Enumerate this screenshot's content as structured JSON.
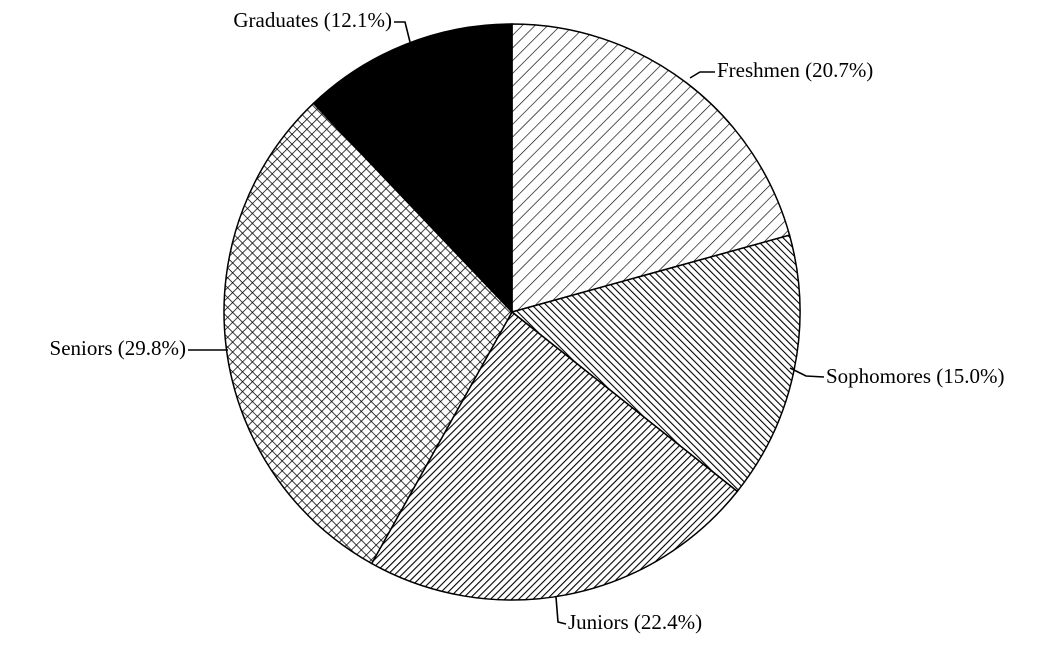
{
  "chart_data": {
    "type": "pie",
    "categories": [
      "Freshmen (20.7%)",
      "Sophomores (15.0%)",
      "Juniors (22.4%)",
      "Seniors (29.8%)",
      "Graduates (12.1%)"
    ],
    "values": [
      20.7,
      15.0,
      22.4,
      29.8,
      12.1
    ],
    "patterns": [
      "forward-light",
      "back-dense",
      "forward-dense",
      "cross",
      "solid"
    ]
  }
}
